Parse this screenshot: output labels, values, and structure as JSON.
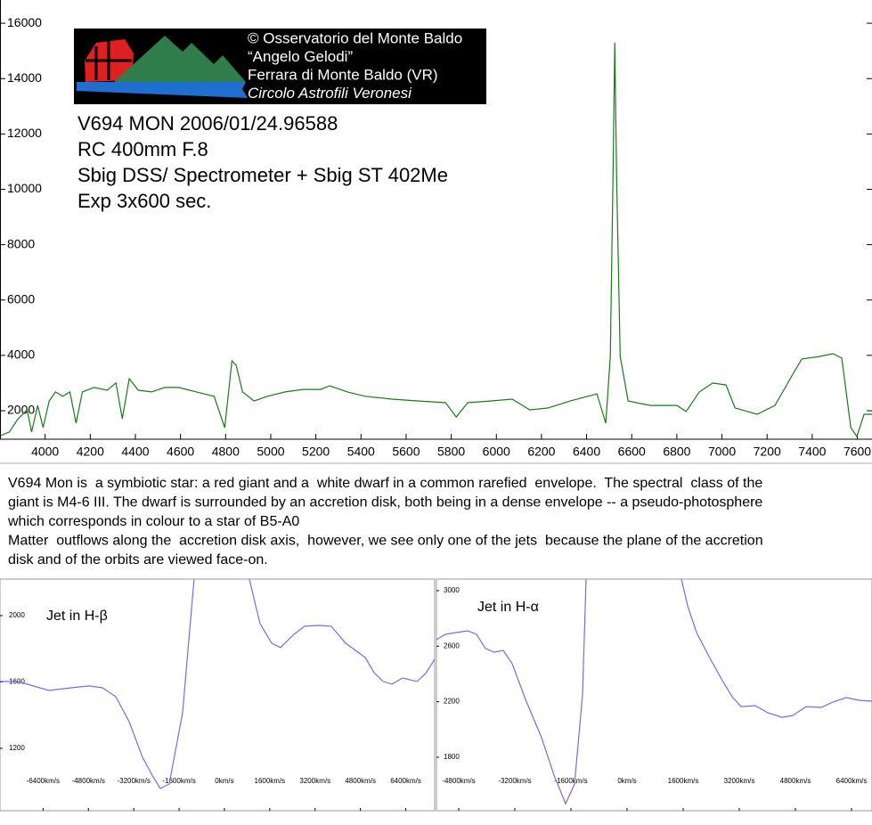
{
  "chart_data": [
    {
      "type": "line",
      "annotations": [
        "V694 MON 2006/01/24.96588",
        "RC 400mm F.8",
        "Sbig DSS/ Spectrometer + Sbig ST 402Me",
        "Exp 3x600 sec."
      ],
      "x": [
        3802,
        3841,
        3880,
        3920,
        3940,
        3967,
        3991,
        4018,
        4046,
        4078,
        4110,
        4137,
        4165,
        4216,
        4275,
        4314,
        4342,
        4373,
        4413,
        4472,
        4531,
        4591,
        4670,
        4749,
        4796,
        4828,
        4847,
        4875,
        4926,
        4985,
        5064,
        5143,
        5222,
        5261,
        5340,
        5419,
        5538,
        5656,
        5775,
        5822,
        5873,
        5972,
        6070,
        6149,
        6229,
        6327,
        6446,
        6485,
        6505,
        6517,
        6525,
        6533,
        6549,
        6584,
        6683,
        6801,
        6841,
        6900,
        6959,
        7018,
        7058,
        7156,
        7235,
        7314,
        7354,
        7433,
        7492,
        7531,
        7571,
        7598,
        7630,
        7665
      ],
      "series": [
        {
          "color": "#1a7a1a",
          "values": [
            1100,
            1230,
            1710,
            2030,
            1230,
            2190,
            1390,
            2350,
            2680,
            2520,
            2680,
            1550,
            2680,
            2840,
            2740,
            3000,
            1710,
            3160,
            2740,
            2680,
            2840,
            2840,
            2680,
            2520,
            1390,
            3800,
            3640,
            2680,
            2350,
            2520,
            2680,
            2770,
            2770,
            2900,
            2680,
            2520,
            2420,
            2350,
            2290,
            1770,
            2290,
            2350,
            2420,
            2030,
            2100,
            2350,
            2610,
            1550,
            3960,
            10400,
            15300,
            10400,
            3960,
            2350,
            2190,
            2190,
            1970,
            2680,
            3000,
            2930,
            2100,
            1870,
            2190,
            3320,
            3870,
            3960,
            4060,
            3900,
            1390,
            1070,
            1870,
            1870
          ]
        }
      ],
      "xlim": [
        3800,
        7665
      ],
      "ylim": [
        970,
        16840
      ],
      "xticks": [
        4000,
        4200,
        4400,
        4600,
        4800,
        5000,
        5200,
        5400,
        5600,
        5800,
        6000,
        6200,
        6400,
        6600,
        6800,
        7000,
        7200,
        7400,
        7600
      ],
      "yticks": [
        2000,
        4000,
        6000,
        8000,
        10000,
        12000,
        14000,
        16000
      ]
    },
    {
      "type": "line",
      "title": "Jet in H-β",
      "x": [
        -7921,
        -7293,
        -6193,
        -5407,
        -4778,
        -4306,
        -3835,
        -3363,
        -2892,
        -2515,
        -2263,
        -1949,
        -1477,
        -1069,
        null,
        880,
        1257,
        1666,
        1980,
        2452,
        2829,
        3332,
        3772,
        4275,
        4967,
        5281,
        5596,
        5910,
        6287,
        6790,
        7104,
        7419
      ],
      "series": [
        {
          "color": "#6f6fe8",
          "values": [
            1603,
            1603,
            1549,
            1565,
            1576,
            1565,
            1511,
            1361,
            1146,
            1028,
            958,
            985,
            1415,
            2220,
            null,
            2220,
            1952,
            1834,
            1807,
            1887,
            1936,
            1941,
            1936,
            1834,
            1748,
            1656,
            1603,
            1587,
            1624,
            1603,
            1651,
            1737
          ]
        }
      ],
      "xlim": [
        -7920,
        7420
      ],
      "ylim": [
        824,
        2220
      ],
      "xticks": [
        {
          "value": -6400,
          "label": "-6400km/s"
        },
        {
          "value": -4800,
          "label": "-4800km/s"
        },
        {
          "value": -3200,
          "label": "-3200km/s"
        },
        {
          "value": -1600,
          "label": "-1600km/s"
        },
        {
          "value": 0,
          "label": "0km/s"
        },
        {
          "value": 1600,
          "label": "1600km/s"
        },
        {
          "value": 3200,
          "label": "3200km/s"
        },
        {
          "value": 4800,
          "label": "4800km/s"
        },
        {
          "value": 6400,
          "label": "6400km/s"
        }
      ],
      "yticks": [
        1200,
        1600,
        2000
      ]
    },
    {
      "type": "line",
      "title": "Jet in H-α",
      "x": [
        -5435,
        -5181,
        -4876,
        -4546,
        -4292,
        -4038,
        -3784,
        -3530,
        -3276,
        -2895,
        -2438,
        -2083,
        -1752,
        -1498,
        -1270,
        -1168,
        null,
        1549,
        1727,
        1981,
        2311,
        2692,
        2997,
        3251,
        3657,
        4013,
        4419,
        4724,
        5105,
        5537,
        5867,
        6248,
        6629,
        6984
      ],
      "series": [
        {
          "color": "#6f6fe8",
          "values": [
            2647,
            2685,
            2698,
            2711,
            2685,
            2583,
            2557,
            2570,
            2474,
            2217,
            1941,
            1671,
            1466,
            1607,
            2249,
            3083,
            null,
            3083,
            2891,
            2698,
            2538,
            2364,
            2236,
            2165,
            2172,
            2120,
            2088,
            2101,
            2165,
            2159,
            2197,
            2230,
            2210,
            2204
          ]
        }
      ],
      "xlim": [
        -5435,
        6984
      ],
      "ylim": [
        1415,
        3083
      ],
      "xticks": [
        {
          "value": -4800,
          "label": "-4800km/s"
        },
        {
          "value": -3200,
          "label": "-3200km/s"
        },
        {
          "value": -1600,
          "label": "-1600km/s"
        },
        {
          "value": 0,
          "label": "0km/s"
        },
        {
          "value": 1600,
          "label": "1600km/s"
        },
        {
          "value": 3200,
          "label": "3200km/s"
        },
        {
          "value": 4800,
          "label": "4800km/s"
        },
        {
          "value": 6400,
          "label": "6400km/s"
        }
      ],
      "yticks": [
        1800,
        2200,
        2600,
        3000
      ]
    }
  ],
  "logo": {
    "lines": [
      "© Osservatorio del Monte Baldo",
      "“Angelo Gelodi”",
      "Ferrara di Monte Baldo (VR)",
      "Circolo Astrofili Veronesi"
    ]
  },
  "description": [
    "V694 Mon is  a symbiotic star: a red giant and a  white dwarf in a common rarefied  envelope.  The spectral  class of the",
    "giant is M4-6 III. The dwarf is surrounded by an accretion disk, both being in a dense envelope -- a pseudo-photosphere",
    "which corresponds in colour to a star of B5-A0",
    "Matter  outflows along the  accretion disk axis,  however, we see only one of the jets  because the plane of the accretion",
    "disk and of the orbits are viewed face-on."
  ]
}
